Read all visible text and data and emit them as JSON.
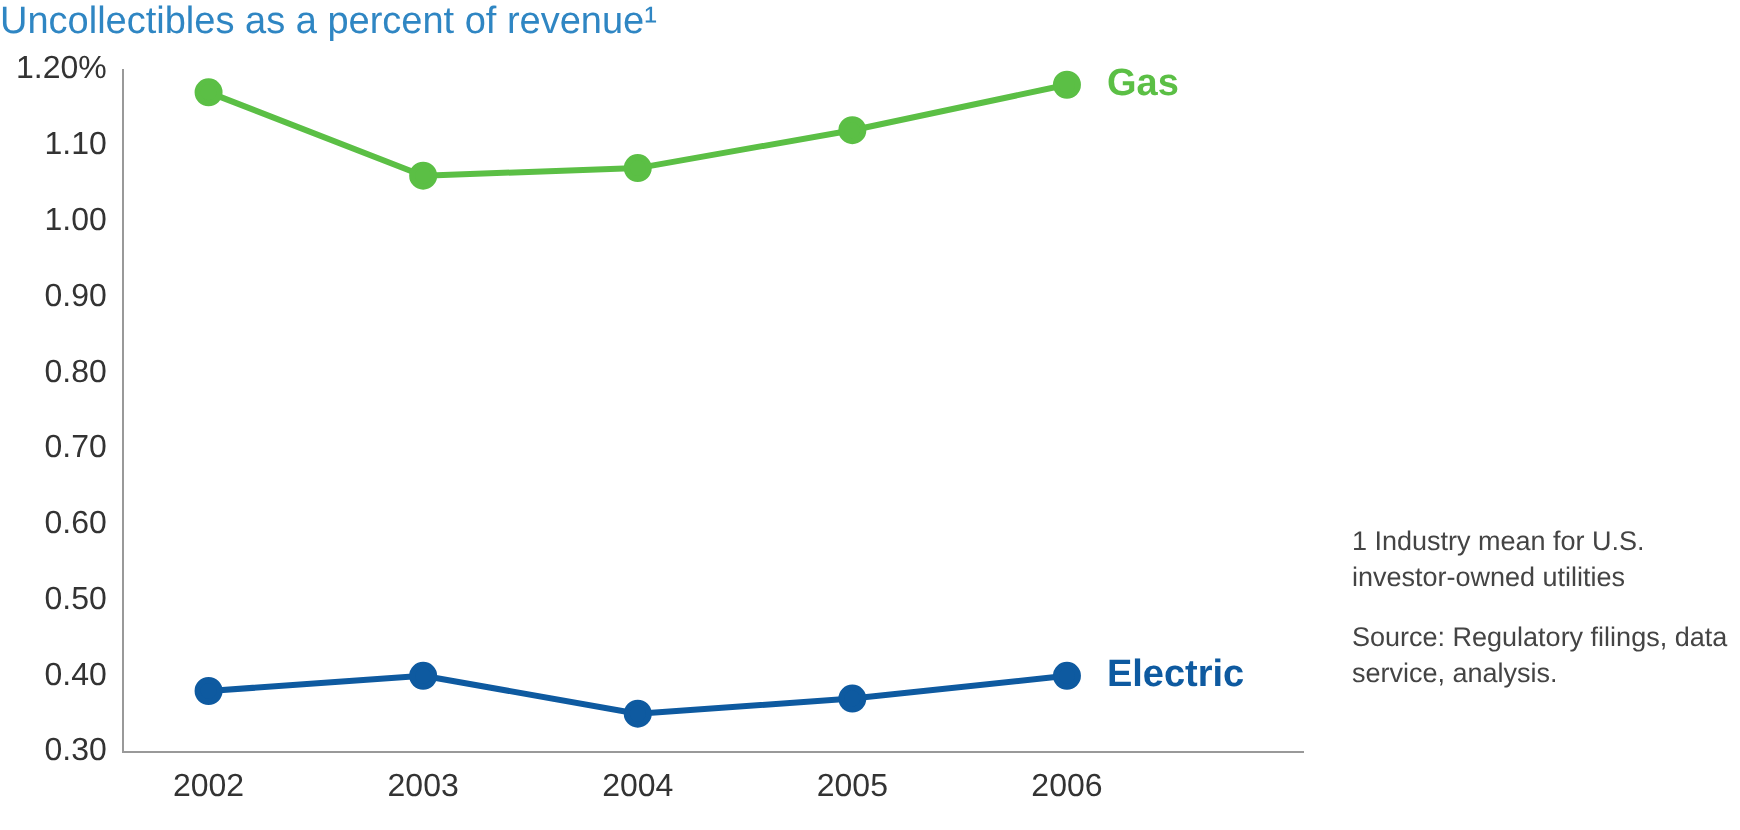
{
  "chart_data": {
    "type": "line",
    "title": "Uncollectibles as a percent of revenue¹",
    "categories": [
      "2002",
      "2003",
      "2004",
      "2005",
      "2006"
    ],
    "series": [
      {
        "name": "Gas",
        "color": "#5bbf45",
        "values": [
          1.17,
          1.06,
          1.07,
          1.12,
          1.18
        ]
      },
      {
        "name": "Electric",
        "color": "#0e5aa0",
        "values": [
          0.38,
          0.4,
          0.35,
          0.37,
          0.4
        ]
      }
    ],
    "ylim": [
      0.3,
      1.2
    ],
    "yticks": [
      {
        "value": 0.3,
        "label": "0.30"
      },
      {
        "value": 0.4,
        "label": "0.40"
      },
      {
        "value": 0.5,
        "label": "0.50"
      },
      {
        "value": 0.6,
        "label": "0.60"
      },
      {
        "value": 0.7,
        "label": "0.70"
      },
      {
        "value": 0.8,
        "label": "0.80"
      },
      {
        "value": 0.9,
        "label": "0.90"
      },
      {
        "value": 1.0,
        "label": "1.00"
      },
      {
        "value": 1.1,
        "label": "1.10"
      },
      {
        "value": 1.2,
        "label": "1.20%"
      }
    ],
    "grid": false,
    "legend": false,
    "marker": "circle",
    "line_style": "solid",
    "annotations": [
      "1 Industry mean for U.S. investor-owned utilities",
      "Source: Regulatory filings, data service, analysis."
    ]
  }
}
